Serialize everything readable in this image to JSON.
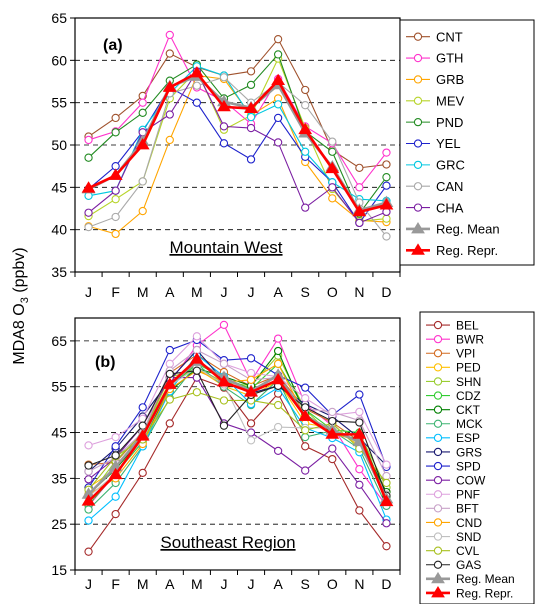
{
  "figure": {
    "ylabel": "MDA8 O3  (ppbv)"
  },
  "chart_data": [
    {
      "type": "line",
      "panel_label": "(a)",
      "region_label": "Mountain West",
      "categories": [
        "J",
        "F",
        "M",
        "A",
        "M",
        "J",
        "J",
        "A",
        "S",
        "O",
        "N",
        "D"
      ],
      "ylim": [
        35,
        65
      ],
      "yticks": [
        35,
        40,
        45,
        50,
        55,
        60,
        65
      ],
      "grid": "dashed horizontal at 45, 50, 55, 60",
      "legend_position": "right",
      "series": [
        {
          "name": "CNT",
          "color": "#a0522d",
          "marker": "circle",
          "values": [
            51,
            53.2,
            55.8,
            60.8,
            59.2,
            58.2,
            58.7,
            62.5,
            56.5,
            49.4,
            47.3,
            47.7
          ]
        },
        {
          "name": "GTH",
          "color": "#ff33cc",
          "marker": "circle",
          "values": [
            50.6,
            51.6,
            55,
            63,
            56.8,
            55.2,
            52.5,
            57.8,
            52.2,
            50.2,
            45,
            49.1
          ]
        },
        {
          "name": "GRB",
          "color": "#ffa500",
          "marker": "circle",
          "values": [
            40.4,
            39.5,
            42.2,
            50.6,
            58.2,
            57.8,
            53.5,
            55.5,
            48,
            43.7,
            41.1,
            40.9
          ]
        },
        {
          "name": "MEV",
          "color": "#b7d42a",
          "marker": "circle",
          "values": [
            41.6,
            43.6,
            45.7,
            55.5,
            58.8,
            51.8,
            53.5,
            60.2,
            52,
            44.8,
            41,
            41.3
          ]
        },
        {
          "name": "PND",
          "color": "#228b22",
          "marker": "circle",
          "values": [
            48.5,
            51.5,
            53.8,
            57.6,
            59.5,
            55.5,
            57.1,
            60.7,
            51.6,
            49.2,
            41.9,
            46.2
          ]
        },
        {
          "name": "YEL",
          "color": "#1e22cc",
          "marker": "circle",
          "values": [
            44.8,
            47.5,
            51.6,
            56.8,
            55,
            50.2,
            48.3,
            53.2,
            48.6,
            45.6,
            40.8,
            45.2
          ]
        },
        {
          "name": "GRC",
          "color": "#00c8e0",
          "marker": "circle",
          "values": [
            44,
            44.6,
            51.8,
            56.1,
            59.3,
            58.2,
            53.3,
            54.8,
            49.2,
            45.6,
            43.6,
            43.4
          ]
        },
        {
          "name": "CAN",
          "color": "#a9a9a9",
          "marker": "circle",
          "values": [
            40.3,
            41.5,
            45.7,
            56.1,
            57,
            58,
            55,
            57.4,
            54.7,
            50.4,
            43.2,
            39.2
          ]
        },
        {
          "name": "CHA",
          "color": "#7b1fa2",
          "marker": "circle",
          "values": [
            42,
            44.6,
            51.5,
            53.6,
            58.7,
            52.2,
            52,
            50.3,
            42.6,
            45,
            40.8,
            42.1
          ]
        },
        {
          "name": "Reg. Mean",
          "color": "#999999",
          "marker": "triangle",
          "bold": true,
          "values": [
            44.8,
            46.4,
            50.4,
            56.9,
            58.1,
            55.1,
            54.4,
            57.1,
            51.4,
            47.4,
            42.3,
            43.2
          ]
        },
        {
          "name": "Reg. Repr.",
          "color": "#ff0000",
          "marker": "triangle",
          "bold": true,
          "values": [
            44.9,
            46.4,
            50,
            56.8,
            58.5,
            54.5,
            54.3,
            57.6,
            51.8,
            47.2,
            42.1,
            42.9
          ]
        }
      ]
    },
    {
      "type": "line",
      "panel_label": "(b)",
      "region_label": "Southeast Region",
      "categories": [
        "J",
        "F",
        "M",
        "A",
        "M",
        "J",
        "J",
        "A",
        "S",
        "O",
        "N",
        "D"
      ],
      "ylim": [
        15,
        70
      ],
      "yticks": [
        15,
        25,
        35,
        45,
        55,
        65
      ],
      "grid": "dashed horizontal at 25, 35, 45, 55, 65",
      "legend_position": "right",
      "series": [
        {
          "name": "BEL",
          "color": "#a52a2a",
          "marker": "circle",
          "values": [
            19,
            27.2,
            36.2,
            47,
            57,
            54.8,
            47,
            53.5,
            42,
            39.2,
            28,
            20.2
          ]
        },
        {
          "name": "BWR",
          "color": "#ff33cc",
          "marker": "circle",
          "values": [
            29,
            36,
            44,
            56,
            64,
            68.5,
            56.2,
            65.5,
            51.2,
            46.5,
            37,
            29
          ]
        },
        {
          "name": "VPI",
          "color": "#d2691e",
          "marker": "circle",
          "values": [
            38,
            38.5,
            45,
            58,
            62,
            58.2,
            55.1,
            57.5,
            50.2,
            47.2,
            43.1,
            32
          ]
        },
        {
          "name": "PED",
          "color": "#ffc000",
          "marker": "circle",
          "values": [
            33,
            37,
            45,
            56,
            59,
            55.1,
            53,
            56.2,
            47,
            46,
            42.2,
            31.5
          ]
        },
        {
          "name": "SHN",
          "color": "#9acd32",
          "marker": "circle",
          "values": [
            31,
            38.8,
            45,
            57,
            59,
            56,
            55.2,
            61.8,
            50,
            44.2,
            44.8,
            33
          ]
        },
        {
          "name": "CDZ",
          "color": "#32cd32",
          "marker": "circle",
          "values": [
            29.2,
            36,
            43,
            55,
            60,
            57,
            54.5,
            60,
            50,
            45.6,
            45,
            31
          ]
        },
        {
          "name": "CKT",
          "color": "#008000",
          "marker": "circle",
          "values": [
            31.5,
            37,
            44,
            54,
            59,
            57.2,
            55.2,
            62.8,
            49,
            45,
            43.5,
            32
          ]
        },
        {
          "name": "MCK",
          "color": "#3cb371",
          "marker": "circle",
          "values": [
            28.2,
            34,
            42,
            52.5,
            60,
            55,
            51,
            56.5,
            44,
            45.4,
            41.5,
            29
          ]
        },
        {
          "name": "ESP",
          "color": "#00bfff",
          "marker": "circle",
          "values": [
            25.8,
            31,
            42,
            54,
            62,
            57.2,
            51.2,
            54.8,
            46,
            43.8,
            40.7,
            26
          ]
        },
        {
          "name": "GRS",
          "color": "#191970",
          "marker": "circle",
          "values": [
            36.5,
            41.5,
            48.5,
            56.5,
            63,
            56.2,
            53.6,
            55.2,
            51.2,
            48.5,
            43.8,
            37.8
          ]
        },
        {
          "name": "SPD",
          "color": "#1e22cc",
          "marker": "circle",
          "values": [
            33,
            42,
            50.5,
            63,
            65.2,
            60.8,
            61.2,
            57.5,
            54.8,
            48.8,
            53.3,
            37.5
          ]
        },
        {
          "name": "COW",
          "color": "#7b1fa2",
          "marker": "circle",
          "values": [
            34.8,
            39.5,
            46.5,
            57,
            57,
            47,
            45,
            41,
            36.7,
            41.5,
            33.6,
            25.2
          ]
        },
        {
          "name": "PNF",
          "color": "#dda0dd",
          "marker": "circle",
          "values": [
            42.2,
            44,
            48,
            60,
            66,
            60,
            58,
            57.2,
            52.5,
            48.8,
            49.5,
            38
          ]
        },
        {
          "name": "BFT",
          "color": "#c8a2c8",
          "marker": "circle",
          "values": [
            36.5,
            39.5,
            45,
            58.5,
            63,
            60,
            56.5,
            57,
            50.2,
            49.5,
            47.6,
            35.5
          ]
        },
        {
          "name": "CND",
          "color": "#ffa500",
          "marker": "circle",
          "values": [
            31.5,
            35,
            42.5,
            54.5,
            58.5,
            56,
            56.5,
            60,
            48.5,
            44.8,
            43.2,
            30
          ]
        },
        {
          "name": "SND",
          "color": "#c0c0c0",
          "marker": "circle",
          "values": [
            31,
            36,
            43.5,
            55.2,
            59.2,
            55.5,
            43.3,
            46.2,
            46,
            46,
            42.5,
            31.5
          ]
        },
        {
          "name": "CVL",
          "color": "#a8c020",
          "marker": "circle",
          "values": [
            32.5,
            39.8,
            43.5,
            52.2,
            53.8,
            52,
            52,
            51,
            45.5,
            47,
            41.5,
            34
          ]
        },
        {
          "name": "GAS",
          "color": "#222222",
          "marker": "circle",
          "values": [
            37.8,
            40,
            46.5,
            57.8,
            58.5,
            46.5,
            53.2,
            55.2,
            50.5,
            47.5,
            47.2,
            31.2
          ]
        },
        {
          "name": "Reg. Mean",
          "color": "#999999",
          "marker": "triangle",
          "bold": true,
          "values": [
            31.5,
            37.5,
            44.5,
            55.5,
            60.5,
            57,
            54,
            57.5,
            48.5,
            45.5,
            43,
            30.5
          ]
        },
        {
          "name": "Reg. Repr.",
          "color": "#ff0000",
          "marker": "triangle",
          "bold": true,
          "values": [
            30,
            35.8,
            44.2,
            55.5,
            61,
            56,
            53.8,
            56.5,
            48.5,
            44.6,
            44.6,
            29.9
          ]
        }
      ]
    }
  ]
}
